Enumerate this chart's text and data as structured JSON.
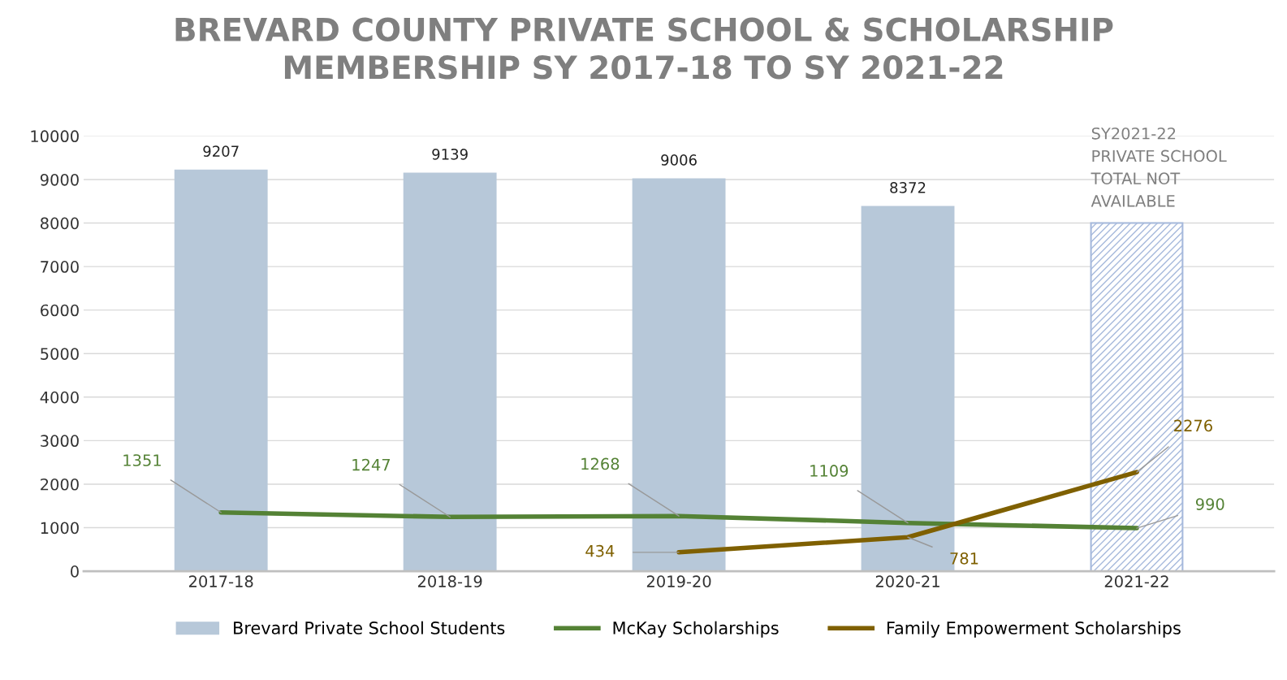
{
  "chart_data": {
    "type": "bar",
    "title": "BREVARD COUNTY PRIVATE SCHOOL & SCHOLARSHIP\nMEMBERSHIP SY 2017-18 TO SY 2021-22",
    "categories": [
      "2017-18",
      "2018-19",
      "2019-20",
      "2020-21",
      "2021-22"
    ],
    "series": [
      {
        "name": "Brevard Private School Students",
        "colors": [
          "#b7c8d9",
          "#b7c8d9",
          "#b7c8d9",
          "#b7c8d9",
          "#a6b9dc"
        ],
        "color": "#b7c8d9",
        "values": [
          9207,
          9139,
          9006,
          8372,
          8000
        ],
        "value_labels": [
          "9207",
          "9139",
          "9006",
          "8372",
          null
        ]
      },
      {
        "name": "McKay Scholarships",
        "type": "line",
        "color": "#548235",
        "values": [
          1351,
          1247,
          1268,
          1109,
          990
        ],
        "value_labels": [
          "1351",
          "1247",
          "1268",
          "1109",
          "990"
        ]
      },
      {
        "name": "Family Empowerment Scholarships",
        "type": "line",
        "color": "#7f6000",
        "values": [
          null,
          null,
          434,
          781,
          2276
        ],
        "value_labels": [
          null,
          null,
          "434",
          "781",
          "2276"
        ]
      }
    ],
    "annotations": [
      {
        "text": "SY2021-22\nPRIVATE SCHOOL\nTOTAL NOT\nAVAILABLE",
        "x": "2021-22",
        "y": 8000
      }
    ],
    "ylim": [
      0,
      10000
    ],
    "yticks": [
      0,
      1000,
      2000,
      3000,
      4000,
      5000,
      6000,
      7000,
      8000,
      9000,
      10000
    ],
    "grid": "y",
    "legend": "bottom"
  }
}
